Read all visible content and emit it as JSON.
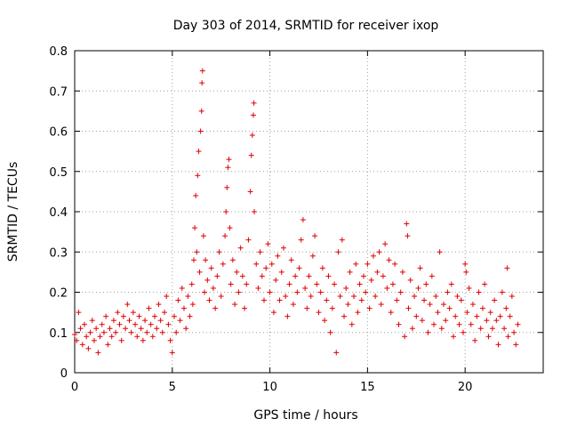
{
  "chart_data": {
    "type": "scatter",
    "title": "Day 303 of 2014, SRMTID for receiver ixop",
    "xlabel": "GPS time / hours",
    "ylabel": "SRMTID / TECUs",
    "xlim": [
      0,
      24
    ],
    "ylim": [
      0,
      0.8
    ],
    "xticks": [
      "0",
      "5",
      "10",
      "15",
      "20"
    ],
    "yticks": [
      "0",
      "0.1",
      "0.2",
      "0.3",
      "0.4",
      "0.5",
      "0.6",
      "0.7",
      "0.8"
    ],
    "grid": true,
    "marker": "+",
    "series_color": "#e00000",
    "series": [
      {
        "name": "SRMTID",
        "points": [
          [
            0.0,
            0.095
          ],
          [
            0.1,
            0.08
          ],
          [
            0.2,
            0.15
          ],
          [
            0.3,
            0.11
          ],
          [
            0.4,
            0.07
          ],
          [
            0.5,
            0.12
          ],
          [
            0.6,
            0.09
          ],
          [
            0.7,
            0.06
          ],
          [
            0.8,
            0.1
          ],
          [
            0.9,
            0.13
          ],
          [
            1.0,
            0.08
          ],
          [
            1.1,
            0.11
          ],
          [
            1.2,
            0.05
          ],
          [
            1.3,
            0.09
          ],
          [
            1.4,
            0.12
          ],
          [
            1.5,
            0.1
          ],
          [
            1.6,
            0.14
          ],
          [
            1.7,
            0.07
          ],
          [
            1.8,
            0.11
          ],
          [
            1.9,
            0.09
          ],
          [
            2.0,
            0.13
          ],
          [
            2.1,
            0.1
          ],
          [
            2.2,
            0.15
          ],
          [
            2.3,
            0.12
          ],
          [
            2.4,
            0.08
          ],
          [
            2.5,
            0.14
          ],
          [
            2.6,
            0.11
          ],
          [
            2.7,
            0.17
          ],
          [
            2.8,
            0.13
          ],
          [
            2.9,
            0.1
          ],
          [
            3.0,
            0.15
          ],
          [
            3.1,
            0.12
          ],
          [
            3.2,
            0.09
          ],
          [
            3.3,
            0.14
          ],
          [
            3.4,
            0.11
          ],
          [
            3.5,
            0.08
          ],
          [
            3.6,
            0.13
          ],
          [
            3.7,
            0.1
          ],
          [
            3.8,
            0.16
          ],
          [
            3.9,
            0.12
          ],
          [
            4.0,
            0.09
          ],
          [
            4.1,
            0.14
          ],
          [
            4.2,
            0.11
          ],
          [
            4.3,
            0.17
          ],
          [
            4.4,
            0.13
          ],
          [
            4.5,
            0.1
          ],
          [
            4.6,
            0.15
          ],
          [
            4.7,
            0.19
          ],
          [
            4.8,
            0.12
          ],
          [
            4.9,
            0.08
          ],
          [
            5.0,
            0.05
          ],
          [
            5.1,
            0.14
          ],
          [
            5.2,
            0.1
          ],
          [
            5.3,
            0.18
          ],
          [
            5.4,
            0.13
          ],
          [
            5.5,
            0.21
          ],
          [
            5.6,
            0.16
          ],
          [
            5.7,
            0.11
          ],
          [
            5.8,
            0.19
          ],
          [
            5.9,
            0.14
          ],
          [
            6.0,
            0.22
          ],
          [
            6.05,
            0.17
          ],
          [
            6.1,
            0.28
          ],
          [
            6.15,
            0.36
          ],
          [
            6.2,
            0.44
          ],
          [
            6.25,
            0.3
          ],
          [
            6.3,
            0.49
          ],
          [
            6.35,
            0.55
          ],
          [
            6.4,
            0.25
          ],
          [
            6.45,
            0.6
          ],
          [
            6.5,
            0.65
          ],
          [
            6.52,
            0.72
          ],
          [
            6.55,
            0.75
          ],
          [
            6.6,
            0.34
          ],
          [
            6.65,
            0.2
          ],
          [
            6.7,
            0.28
          ],
          [
            6.8,
            0.23
          ],
          [
            6.9,
            0.18
          ],
          [
            7.0,
            0.26
          ],
          [
            7.1,
            0.21
          ],
          [
            7.2,
            0.16
          ],
          [
            7.3,
            0.24
          ],
          [
            7.4,
            0.3
          ],
          [
            7.5,
            0.19
          ],
          [
            7.6,
            0.27
          ],
          [
            7.7,
            0.34
          ],
          [
            7.75,
            0.4
          ],
          [
            7.8,
            0.46
          ],
          [
            7.85,
            0.51
          ],
          [
            7.9,
            0.53
          ],
          [
            7.95,
            0.36
          ],
          [
            8.0,
            0.22
          ],
          [
            8.1,
            0.28
          ],
          [
            8.2,
            0.17
          ],
          [
            8.3,
            0.25
          ],
          [
            8.4,
            0.2
          ],
          [
            8.5,
            0.31
          ],
          [
            8.6,
            0.24
          ],
          [
            8.7,
            0.16
          ],
          [
            8.8,
            0.22
          ],
          [
            8.9,
            0.33
          ],
          [
            9.0,
            0.45
          ],
          [
            9.05,
            0.54
          ],
          [
            9.1,
            0.59
          ],
          [
            9.15,
            0.64
          ],
          [
            9.18,
            0.67
          ],
          [
            9.2,
            0.4
          ],
          [
            9.3,
            0.27
          ],
          [
            9.4,
            0.21
          ],
          [
            9.5,
            0.3
          ],
          [
            9.6,
            0.24
          ],
          [
            9.7,
            0.18
          ],
          [
            9.8,
            0.26
          ],
          [
            9.9,
            0.32
          ],
          [
            10.0,
            0.2
          ],
          [
            10.1,
            0.27
          ],
          [
            10.2,
            0.15
          ],
          [
            10.3,
            0.23
          ],
          [
            10.4,
            0.29
          ],
          [
            10.5,
            0.18
          ],
          [
            10.6,
            0.25
          ],
          [
            10.7,
            0.31
          ],
          [
            10.8,
            0.19
          ],
          [
            10.9,
            0.14
          ],
          [
            11.0,
            0.22
          ],
          [
            11.1,
            0.28
          ],
          [
            11.2,
            0.17
          ],
          [
            11.3,
            0.24
          ],
          [
            11.4,
            0.2
          ],
          [
            11.5,
            0.26
          ],
          [
            11.6,
            0.33
          ],
          [
            11.7,
            0.38
          ],
          [
            11.8,
            0.21
          ],
          [
            11.9,
            0.16
          ],
          [
            12.0,
            0.24
          ],
          [
            12.1,
            0.19
          ],
          [
            12.2,
            0.29
          ],
          [
            12.3,
            0.34
          ],
          [
            12.4,
            0.22
          ],
          [
            12.5,
            0.15
          ],
          [
            12.6,
            0.2
          ],
          [
            12.7,
            0.26
          ],
          [
            12.8,
            0.13
          ],
          [
            12.9,
            0.18
          ],
          [
            13.0,
            0.24
          ],
          [
            13.1,
            0.1
          ],
          [
            13.2,
            0.16
          ],
          [
            13.3,
            0.22
          ],
          [
            13.4,
            0.05
          ],
          [
            13.5,
            0.3
          ],
          [
            13.6,
            0.19
          ],
          [
            13.7,
            0.33
          ],
          [
            13.8,
            0.14
          ],
          [
            13.9,
            0.21
          ],
          [
            14.0,
            0.17
          ],
          [
            14.1,
            0.25
          ],
          [
            14.2,
            0.12
          ],
          [
            14.3,
            0.19
          ],
          [
            14.4,
            0.27
          ],
          [
            14.5,
            0.15
          ],
          [
            14.6,
            0.22
          ],
          [
            14.7,
            0.18
          ],
          [
            14.8,
            0.24
          ],
          [
            14.9,
            0.2
          ],
          [
            15.0,
            0.27
          ],
          [
            15.1,
            0.16
          ],
          [
            15.2,
            0.23
          ],
          [
            15.3,
            0.29
          ],
          [
            15.4,
            0.19
          ],
          [
            15.5,
            0.25
          ],
          [
            15.6,
            0.3
          ],
          [
            15.7,
            0.17
          ],
          [
            15.8,
            0.24
          ],
          [
            15.9,
            0.32
          ],
          [
            16.0,
            0.21
          ],
          [
            16.1,
            0.28
          ],
          [
            16.2,
            0.15
          ],
          [
            16.3,
            0.22
          ],
          [
            16.4,
            0.27
          ],
          [
            16.5,
            0.18
          ],
          [
            16.6,
            0.12
          ],
          [
            16.7,
            0.2
          ],
          [
            16.8,
            0.25
          ],
          [
            16.9,
            0.09
          ],
          [
            17.0,
            0.37
          ],
          [
            17.05,
            0.34
          ],
          [
            17.1,
            0.16
          ],
          [
            17.2,
            0.23
          ],
          [
            17.3,
            0.11
          ],
          [
            17.4,
            0.19
          ],
          [
            17.5,
            0.14
          ],
          [
            17.6,
            0.21
          ],
          [
            17.7,
            0.26
          ],
          [
            17.8,
            0.13
          ],
          [
            17.9,
            0.18
          ],
          [
            18.0,
            0.22
          ],
          [
            18.1,
            0.1
          ],
          [
            18.2,
            0.17
          ],
          [
            18.3,
            0.24
          ],
          [
            18.4,
            0.12
          ],
          [
            18.5,
            0.19
          ],
          [
            18.6,
            0.15
          ],
          [
            18.7,
            0.3
          ],
          [
            18.8,
            0.11
          ],
          [
            18.9,
            0.17
          ],
          [
            19.0,
            0.13
          ],
          [
            19.1,
            0.2
          ],
          [
            19.2,
            0.16
          ],
          [
            19.3,
            0.22
          ],
          [
            19.4,
            0.09
          ],
          [
            19.5,
            0.14
          ],
          [
            19.6,
            0.19
          ],
          [
            19.7,
            0.12
          ],
          [
            19.8,
            0.18
          ],
          [
            19.9,
            0.1
          ],
          [
            20.0,
            0.27
          ],
          [
            20.05,
            0.25
          ],
          [
            20.1,
            0.15
          ],
          [
            20.2,
            0.21
          ],
          [
            20.3,
            0.12
          ],
          [
            20.4,
            0.17
          ],
          [
            20.5,
            0.08
          ],
          [
            20.6,
            0.14
          ],
          [
            20.7,
            0.2
          ],
          [
            20.8,
            0.11
          ],
          [
            20.9,
            0.16
          ],
          [
            21.0,
            0.22
          ],
          [
            21.1,
            0.13
          ],
          [
            21.2,
            0.09
          ],
          [
            21.3,
            0.15
          ],
          [
            21.4,
            0.11
          ],
          [
            21.5,
            0.18
          ],
          [
            21.6,
            0.13
          ],
          [
            21.7,
            0.07
          ],
          [
            21.8,
            0.14
          ],
          [
            21.9,
            0.2
          ],
          [
            22.0,
            0.11
          ],
          [
            22.1,
            0.16
          ],
          [
            22.15,
            0.26
          ],
          [
            22.2,
            0.09
          ],
          [
            22.3,
            0.14
          ],
          [
            22.4,
            0.19
          ],
          [
            22.5,
            0.1
          ],
          [
            22.6,
            0.07
          ],
          [
            22.7,
            0.12
          ]
        ]
      }
    ]
  }
}
